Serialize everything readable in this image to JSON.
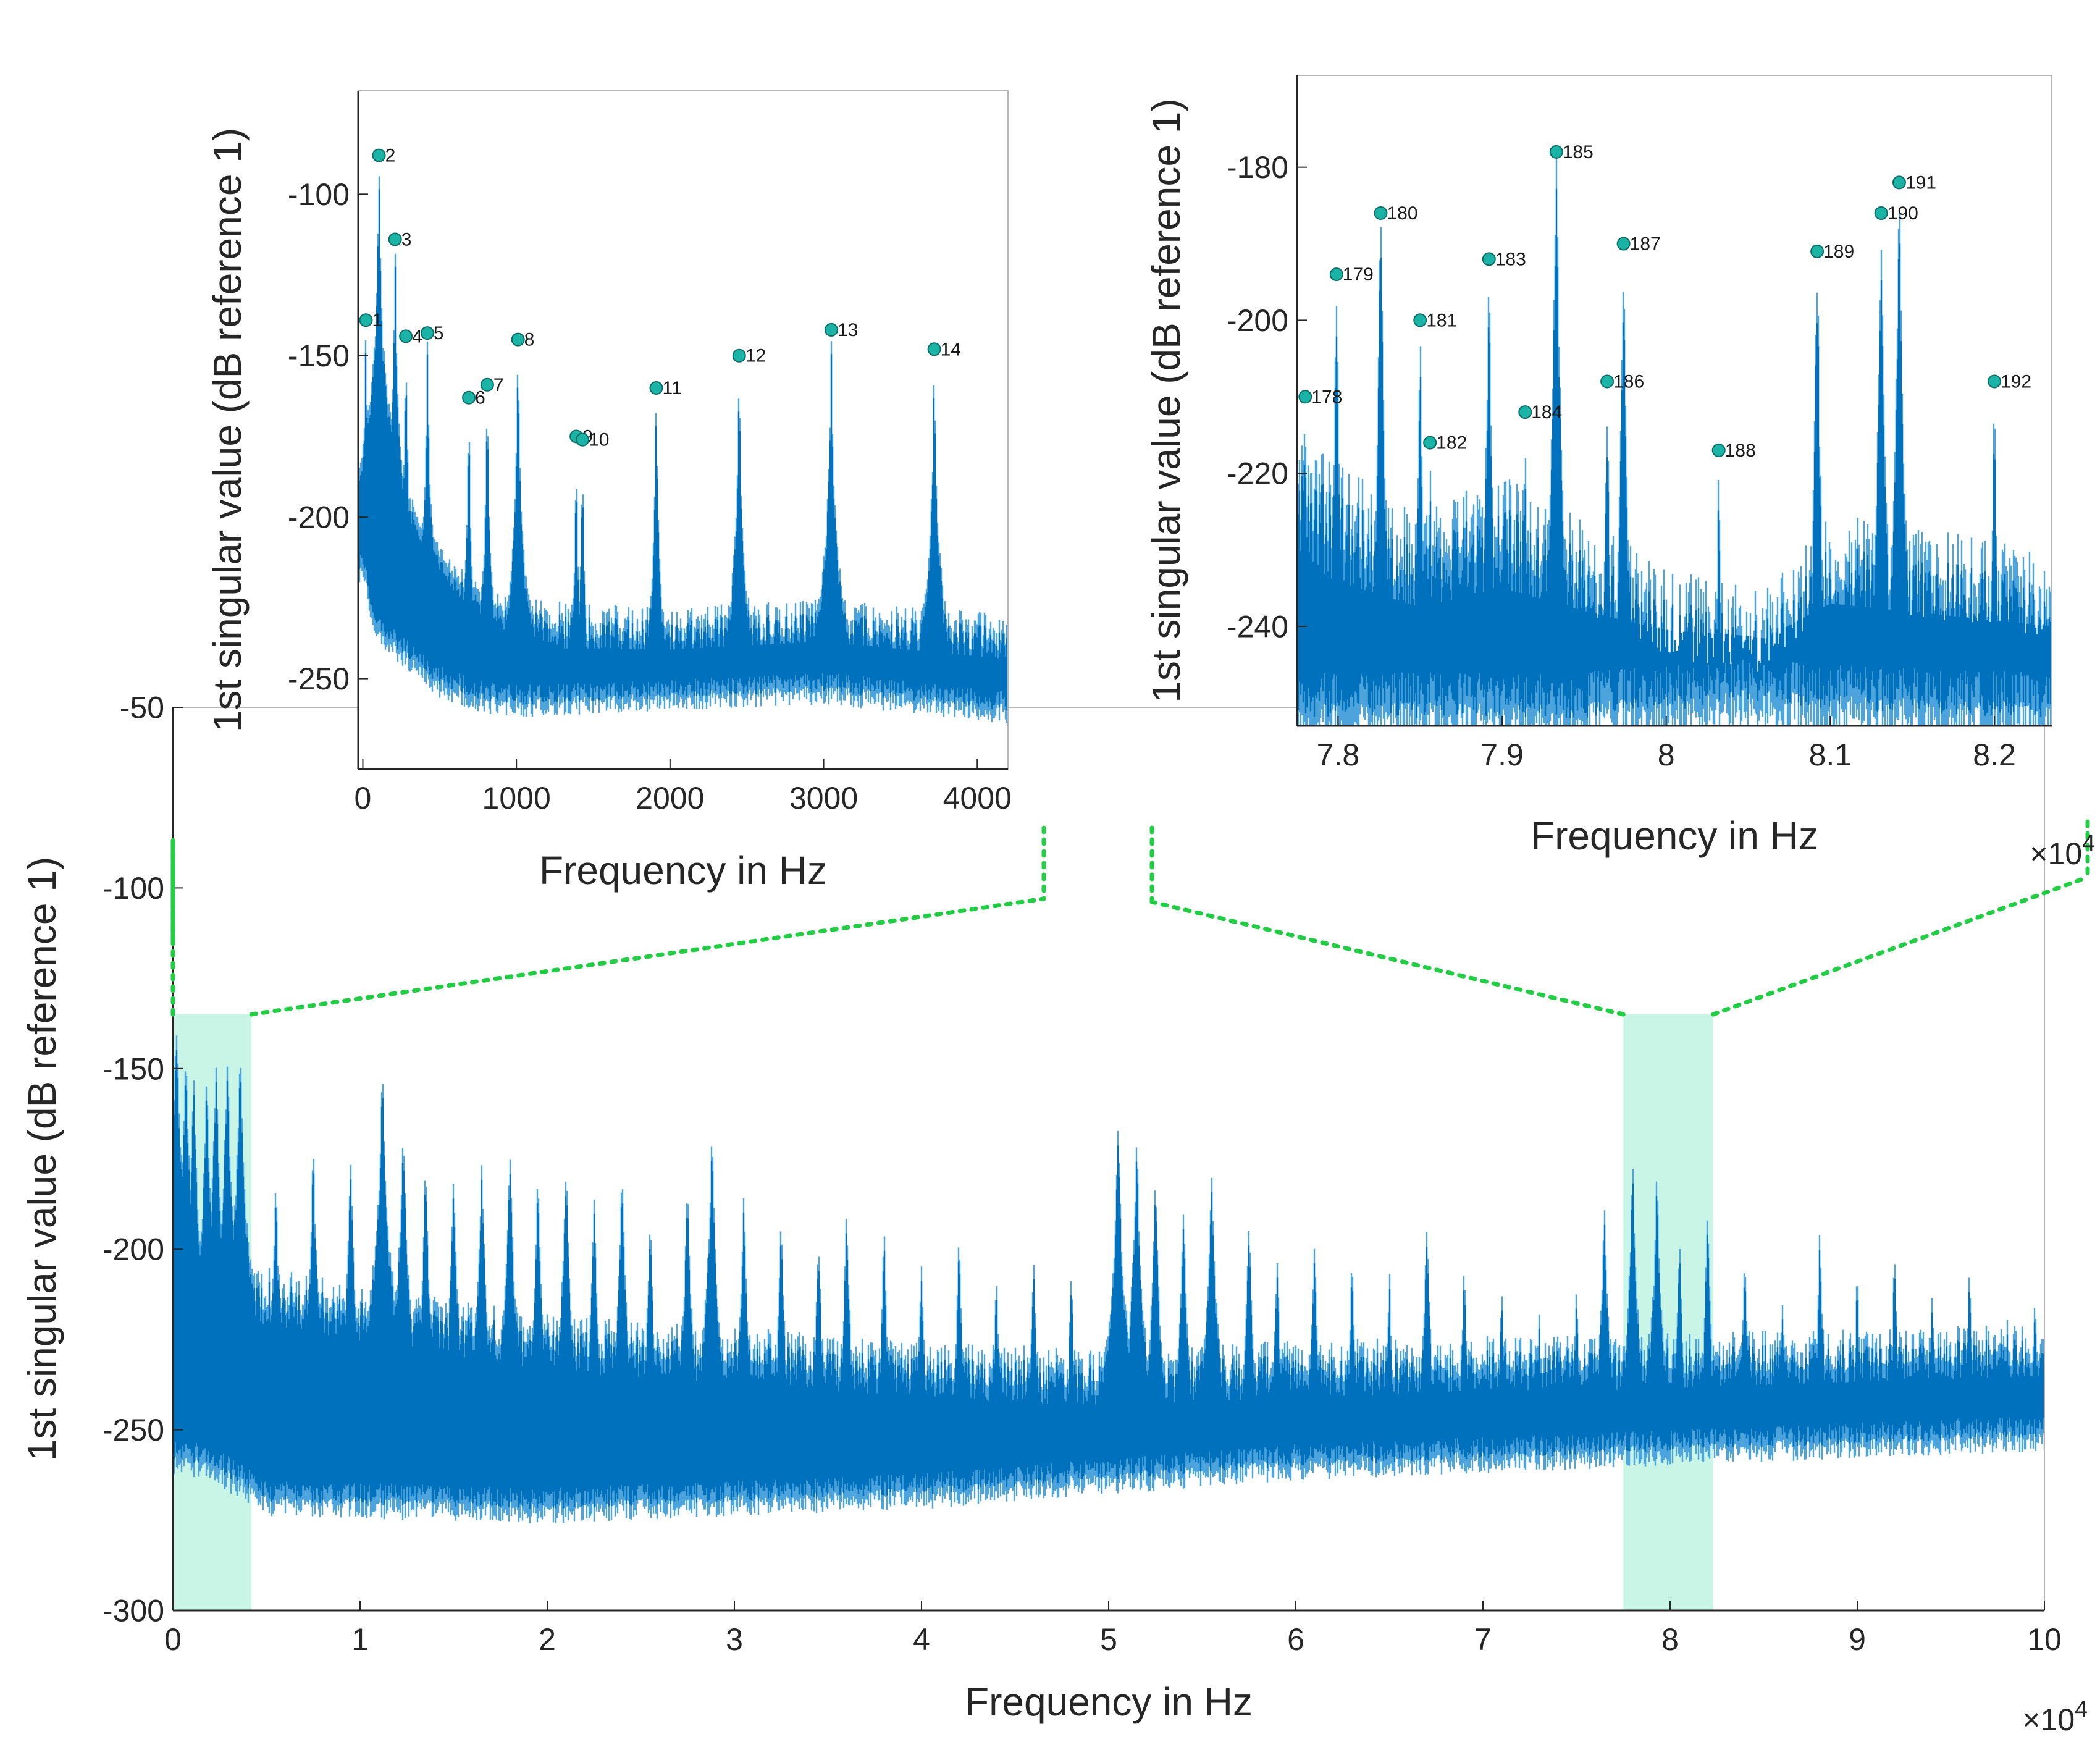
{
  "chart_data": [
    {
      "id": "main",
      "type": "line",
      "xlabel": "Frequency in Hz",
      "ylabel": "1st singular value (dB reference 1)",
      "xlim": [
        0,
        100000
      ],
      "ylim": [
        -300,
        -50
      ],
      "x_multiplier": "×10^4",
      "x_ticks": [
        0,
        10000,
        20000,
        30000,
        40000,
        50000,
        60000,
        70000,
        80000,
        90000,
        100000
      ],
      "x_tick_labels": [
        "0",
        "1",
        "2",
        "3",
        "4",
        "5",
        "6",
        "7",
        "8",
        "9",
        "10"
      ],
      "y_ticks": [
        -300,
        -250,
        -200,
        -150,
        -100,
        -50
      ],
      "y_tick_labels": [
        "-300",
        "-250",
        "-200",
        "-150",
        "-100",
        "-50"
      ],
      "highlight_bands": [
        {
          "x": [
            0,
            4200
          ],
          "y": [
            -300,
            -135
          ]
        },
        {
          "x": [
            77500,
            82300
          ],
          "y": [
            -300,
            -135
          ]
        }
      ],
      "floor": [
        [
          0,
          -257
        ],
        [
          2000,
          -258
        ],
        [
          5000,
          -268
        ],
        [
          20000,
          -270
        ],
        [
          40000,
          -266
        ],
        [
          50000,
          -262
        ],
        [
          60000,
          -258
        ],
        [
          80000,
          -254
        ],
        [
          100000,
          -250
        ]
      ],
      "ceiling": [
        [
          0,
          -215
        ],
        [
          5000,
          -205
        ],
        [
          20000,
          -218
        ],
        [
          40000,
          -225
        ],
        [
          50000,
          -228
        ],
        [
          60000,
          -225
        ],
        [
          80000,
          -223
        ],
        [
          100000,
          -220
        ]
      ],
      "peaks": [
        [
          200,
          -135
        ],
        [
          700,
          -145
        ],
        [
          1100,
          -150
        ],
        [
          1800,
          -152
        ],
        [
          2300,
          -148
        ],
        [
          2900,
          -146
        ],
        [
          3600,
          -145
        ],
        [
          5500,
          -180
        ],
        [
          7500,
          -172
        ],
        [
          9500,
          -175
        ],
        [
          11200,
          -150
        ],
        [
          12300,
          -165
        ],
        [
          13500,
          -175
        ],
        [
          15000,
          -178
        ],
        [
          16500,
          -175
        ],
        [
          18000,
          -170
        ],
        [
          19500,
          -180
        ],
        [
          21000,
          -175
        ],
        [
          22500,
          -185
        ],
        [
          24000,
          -178
        ],
        [
          25500,
          -190
        ],
        [
          27500,
          -180
        ],
        [
          28800,
          -168
        ],
        [
          30500,
          -185
        ],
        [
          32500,
          -190
        ],
        [
          34500,
          -195
        ],
        [
          36000,
          -188
        ],
        [
          38000,
          -195
        ],
        [
          40000,
          -200
        ],
        [
          42000,
          -195
        ],
        [
          44000,
          -205
        ],
        [
          46000,
          -200
        ],
        [
          48000,
          -205
        ],
        [
          50500,
          -165
        ],
        [
          51500,
          -170
        ],
        [
          52500,
          -180
        ],
        [
          54000,
          -185
        ],
        [
          55500,
          -175
        ],
        [
          57500,
          -190
        ],
        [
          59000,
          -200
        ],
        [
          61000,
          -195
        ],
        [
          63000,
          -200
        ],
        [
          65000,
          -205
        ],
        [
          67000,
          -190
        ],
        [
          69000,
          -205
        ],
        [
          71000,
          -210
        ],
        [
          73000,
          -215
        ],
        [
          75000,
          -210
        ],
        [
          76500,
          -185
        ],
        [
          78000,
          -176
        ],
        [
          79300,
          -178
        ],
        [
          80500,
          -195
        ],
        [
          82000,
          -190
        ],
        [
          84000,
          -200
        ],
        [
          86000,
          -210
        ],
        [
          88000,
          -195
        ],
        [
          90000,
          -205
        ],
        [
          92000,
          -200
        ],
        [
          94000,
          -210
        ],
        [
          96000,
          -205
        ],
        [
          98000,
          -215
        ],
        [
          99500,
          -210
        ]
      ]
    },
    {
      "id": "inset-left",
      "type": "line",
      "xlabel": "Frequency in Hz",
      "ylabel": "1st singular value (dB reference 1)",
      "xlim": [
        -30,
        4200
      ],
      "ylim": [
        -278,
        -68
      ],
      "x_ticks": [
        0,
        1000,
        2000,
        3000,
        4000
      ],
      "x_tick_labels": [
        "0",
        "1000",
        "2000",
        "3000",
        "4000"
      ],
      "y_ticks": [
        -250,
        -200,
        -150,
        -100
      ],
      "y_tick_labels": [
        "-250",
        "-200",
        "-150",
        "-100"
      ],
      "floor": [
        [
          0,
          -215
        ],
        [
          100,
          -235
        ],
        [
          300,
          -242
        ],
        [
          500,
          -250
        ],
        [
          800,
          -255
        ],
        [
          1000,
          -256
        ],
        [
          2000,
          -254
        ],
        [
          3000,
          -252
        ],
        [
          3600,
          -255
        ],
        [
          4200,
          -258
        ]
      ],
      "ceiling": [
        [
          0,
          -200
        ],
        [
          300,
          -210
        ],
        [
          600,
          -220
        ],
        [
          1000,
          -225
        ],
        [
          2000,
          -228
        ],
        [
          3000,
          -225
        ],
        [
          4200,
          -230
        ]
      ],
      "peaks": [
        {
          "label": "1",
          "x": 20,
          "y": -139
        },
        {
          "label": "2",
          "x": 105,
          "y": -88
        },
        {
          "label": "3",
          "x": 210,
          "y": -114
        },
        {
          "label": "4",
          "x": 280,
          "y": -144
        },
        {
          "label": "5",
          "x": 420,
          "y": -143
        },
        {
          "label": "6",
          "x": 690,
          "y": -163
        },
        {
          "label": "7",
          "x": 810,
          "y": -159
        },
        {
          "label": "8",
          "x": 1010,
          "y": -145
        },
        {
          "label": "9",
          "x": 1390,
          "y": -175
        },
        {
          "label": "10",
          "x": 1430,
          "y": -176
        },
        {
          "label": "11",
          "x": 1910,
          "y": -160
        },
        {
          "label": "12",
          "x": 2450,
          "y": -150
        },
        {
          "label": "13",
          "x": 3050,
          "y": -142
        },
        {
          "label": "14",
          "x": 3720,
          "y": -148
        }
      ]
    },
    {
      "id": "inset-right",
      "type": "line",
      "xlabel": "Frequency in Hz",
      "ylabel": "1st singular value (dB reference 1)",
      "xlim": [
        77750,
        82350
      ],
      "ylim": [
        -253,
        -168
      ],
      "x_multiplier": "×10^4",
      "x_ticks": [
        78000,
        79000,
        80000,
        81000,
        82000
      ],
      "x_tick_labels": [
        "7.8",
        "7.9",
        "8",
        "8.1",
        "8.2"
      ],
      "y_ticks": [
        -240,
        -220,
        -200,
        -180
      ],
      "y_tick_labels": [
        "-240",
        "-220",
        "-200",
        "-180"
      ],
      "floor": [
        [
          77750,
          -250
        ],
        [
          79500,
          -250
        ],
        [
          80500,
          -248
        ],
        [
          81000,
          -249
        ],
        [
          82350,
          -250
        ]
      ],
      "ceiling": [
        [
          77750,
          -215
        ],
        [
          78500,
          -225
        ],
        [
          79000,
          -220
        ],
        [
          80000,
          -232
        ],
        [
          80600,
          -235
        ],
        [
          81000,
          -225
        ],
        [
          82350,
          -230
        ]
      ],
      "peaks": [
        {
          "label": "178",
          "x": 77800,
          "y": -210
        },
        {
          "label": "179",
          "x": 77990,
          "y": -194
        },
        {
          "label": "180",
          "x": 78260,
          "y": -186
        },
        {
          "label": "181",
          "x": 78500,
          "y": -200
        },
        {
          "label": "182",
          "x": 78560,
          "y": -216
        },
        {
          "label": "183",
          "x": 78920,
          "y": -192
        },
        {
          "label": "184",
          "x": 79140,
          "y": -212
        },
        {
          "label": "185",
          "x": 79330,
          "y": -178
        },
        {
          "label": "186",
          "x": 79640,
          "y": -208
        },
        {
          "label": "187",
          "x": 79740,
          "y": -190
        },
        {
          "label": "188",
          "x": 80320,
          "y": -217
        },
        {
          "label": "189",
          "x": 80920,
          "y": -191
        },
        {
          "label": "190",
          "x": 81310,
          "y": -186
        },
        {
          "label": "191",
          "x": 81420,
          "y": -182
        },
        {
          "label": "192",
          "x": 82000,
          "y": -208
        }
      ]
    }
  ],
  "colors": {
    "signal": "#0072BD",
    "signal_light": "#4DA3DB",
    "highlight": "#C9F5E6",
    "marker": "#1BB3A6",
    "connector": "#22CC44",
    "axes": "#262626"
  }
}
